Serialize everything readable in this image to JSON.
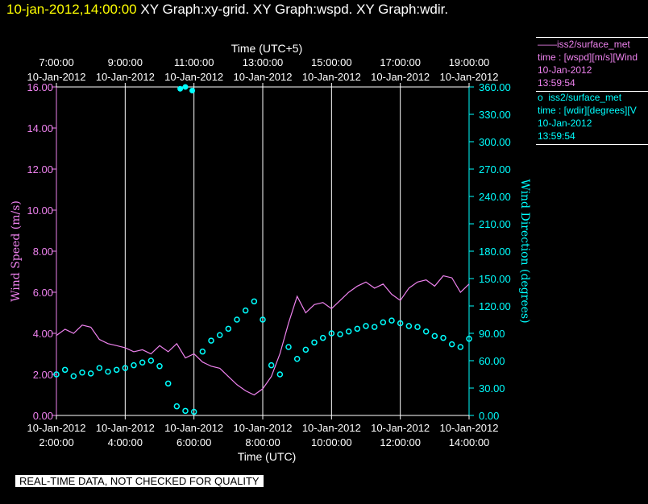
{
  "header": {
    "timestamp": "10-jan-2012,14:00:00",
    "graphs": "XY Graph:xy-grid.  XY Graph:wspd.  XY Graph:wdir."
  },
  "chart_data": {
    "type": "line",
    "top_axis": {
      "label": "Time (UTC+5)",
      "ticks": [
        {
          "time": "7:00:00",
          "date": "10-Jan-2012"
        },
        {
          "time": "9:00:00",
          "date": "10-Jan-2012"
        },
        {
          "time": "11:00:00",
          "date": "10-Jan-2012"
        },
        {
          "time": "13:00:00",
          "date": "10-Jan-2012"
        },
        {
          "time": "15:00:00",
          "date": "10-Jan-2012"
        },
        {
          "time": "17:00:00",
          "date": "10-Jan-2012"
        },
        {
          "time": "19:00:00",
          "date": "10-Jan-2012"
        }
      ]
    },
    "bottom_axis": {
      "label": "Time (UTC)",
      "ticks": [
        {
          "time": "2:00:00",
          "date": "10-Jan-2012"
        },
        {
          "time": "4:00:00",
          "date": "10-Jan-2012"
        },
        {
          "time": "6:00:00",
          "date": "10-Jan-2012"
        },
        {
          "time": "8:00:00",
          "date": "10-Jan-2012"
        },
        {
          "time": "10:00:00",
          "date": "10-Jan-2012"
        },
        {
          "time": "12:00:00",
          "date": "10-Jan-2012"
        },
        {
          "time": "14:00:00",
          "date": "10-Jan-2012"
        }
      ],
      "range_hours_utc": [
        2,
        14
      ]
    },
    "left_axis": {
      "label": "Wind Speed (m/s)",
      "range": [
        0,
        16
      ],
      "ticks": [
        "0.00",
        "2.00",
        "4.00",
        "6.00",
        "8.00",
        "10.00",
        "12.00",
        "14.00",
        "16.00"
      ],
      "color": "#ee82ee"
    },
    "right_axis": {
      "label": "Wind Direction (degrees)",
      "range": [
        0,
        360
      ],
      "ticks": [
        "0.00",
        "30.00",
        "60.00",
        "90.00",
        "120.00",
        "150.00",
        "180.00",
        "210.00",
        "240.00",
        "270.00",
        "300.00",
        "330.00",
        "360.00"
      ],
      "color": "#00ffff"
    },
    "vertical_grid_hours_utc": [
      4,
      6,
      8,
      10,
      12
    ],
    "series": [
      {
        "name": "iss2/surface_met time : [wspd][m/s][Wind",
        "axis": "left",
        "style": "line",
        "color": "#ee82ee",
        "x_hours_utc": [
          2.0,
          2.25,
          2.5,
          2.75,
          3.0,
          3.25,
          3.5,
          3.75,
          4.0,
          4.25,
          4.5,
          4.75,
          5.0,
          5.25,
          5.5,
          5.75,
          6.0,
          6.25,
          6.5,
          6.75,
          7.0,
          7.25,
          7.5,
          7.75,
          8.0,
          8.25,
          8.5,
          8.75,
          9.0,
          9.25,
          9.5,
          9.75,
          10.0,
          10.25,
          10.5,
          10.75,
          11.0,
          11.25,
          11.5,
          11.75,
          12.0,
          12.25,
          12.5,
          12.75,
          13.0,
          13.25,
          13.5,
          13.75,
          14.0
        ],
        "values": [
          3.9,
          4.2,
          4.0,
          4.4,
          4.3,
          3.7,
          3.5,
          3.4,
          3.3,
          3.1,
          3.2,
          3.0,
          3.4,
          3.1,
          3.5,
          2.8,
          3.0,
          2.6,
          2.4,
          2.3,
          1.9,
          1.5,
          1.2,
          1.0,
          1.3,
          1.9,
          3.0,
          4.5,
          5.8,
          5.0,
          5.4,
          5.5,
          5.2,
          5.6,
          6.0,
          6.3,
          6.5,
          6.2,
          6.4,
          5.9,
          5.6,
          6.2,
          6.5,
          6.6,
          6.3,
          6.8,
          6.7,
          6.0,
          6.4
        ]
      },
      {
        "name": "iss2/surface_met time : [wdir][degrees][V",
        "axis": "right",
        "style": "points",
        "color": "#00ffff",
        "x_hours_utc": [
          2.0,
          2.25,
          2.5,
          2.75,
          3.0,
          3.25,
          3.5,
          3.75,
          4.0,
          4.25,
          4.5,
          4.75,
          5.0,
          5.25,
          5.5,
          5.75,
          6.0,
          6.25,
          6.5,
          6.75,
          7.0,
          7.25,
          7.5,
          7.75,
          8.0,
          8.25,
          8.5,
          8.75,
          9.0,
          9.25,
          9.5,
          9.75,
          10.0,
          10.25,
          10.5,
          10.75,
          11.0,
          11.25,
          11.5,
          11.75,
          12.0,
          12.25,
          12.5,
          12.75,
          13.0,
          13.25,
          13.5,
          13.75,
          14.0
        ],
        "values": [
          45,
          50,
          43,
          47,
          46,
          52,
          48,
          50,
          52,
          55,
          58,
          60,
          54,
          35,
          10,
          5,
          4,
          70,
          82,
          88,
          95,
          105,
          115,
          125,
          105,
          55,
          45,
          75,
          62,
          72,
          80,
          85,
          90,
          89,
          92,
          95,
          98,
          97,
          102,
          104,
          101,
          98,
          97,
          92,
          87,
          85,
          78,
          75,
          84
        ]
      }
    ],
    "extra_points": [
      {
        "x_hours_utc": 5.6,
        "value": 358
      },
      {
        "x_hours_utc": 5.75,
        "value": 360
      },
      {
        "x_hours_utc": 5.95,
        "value": 356
      }
    ]
  },
  "legend": {
    "entries": [
      {
        "marker": "——",
        "name": "iss2/surface_met",
        "var": "time : [wspd][m/s][Wind",
        "date": "10-Jan-2012",
        "time": "13:59:54"
      },
      {
        "marker": "o",
        "name": "iss2/surface_met",
        "var": "time : [wdir][degrees][V",
        "date": "10-Jan-2012",
        "time": "13:59:54"
      }
    ]
  },
  "footer": {
    "notice": "REAL-TIME DATA, NOT CHECKED FOR QUALITY"
  },
  "colors": {
    "wspd": "#ee82ee",
    "wdir": "#00ffff",
    "timestamp": "#ffff00",
    "grid": "#ffffff",
    "background": "#000000"
  }
}
